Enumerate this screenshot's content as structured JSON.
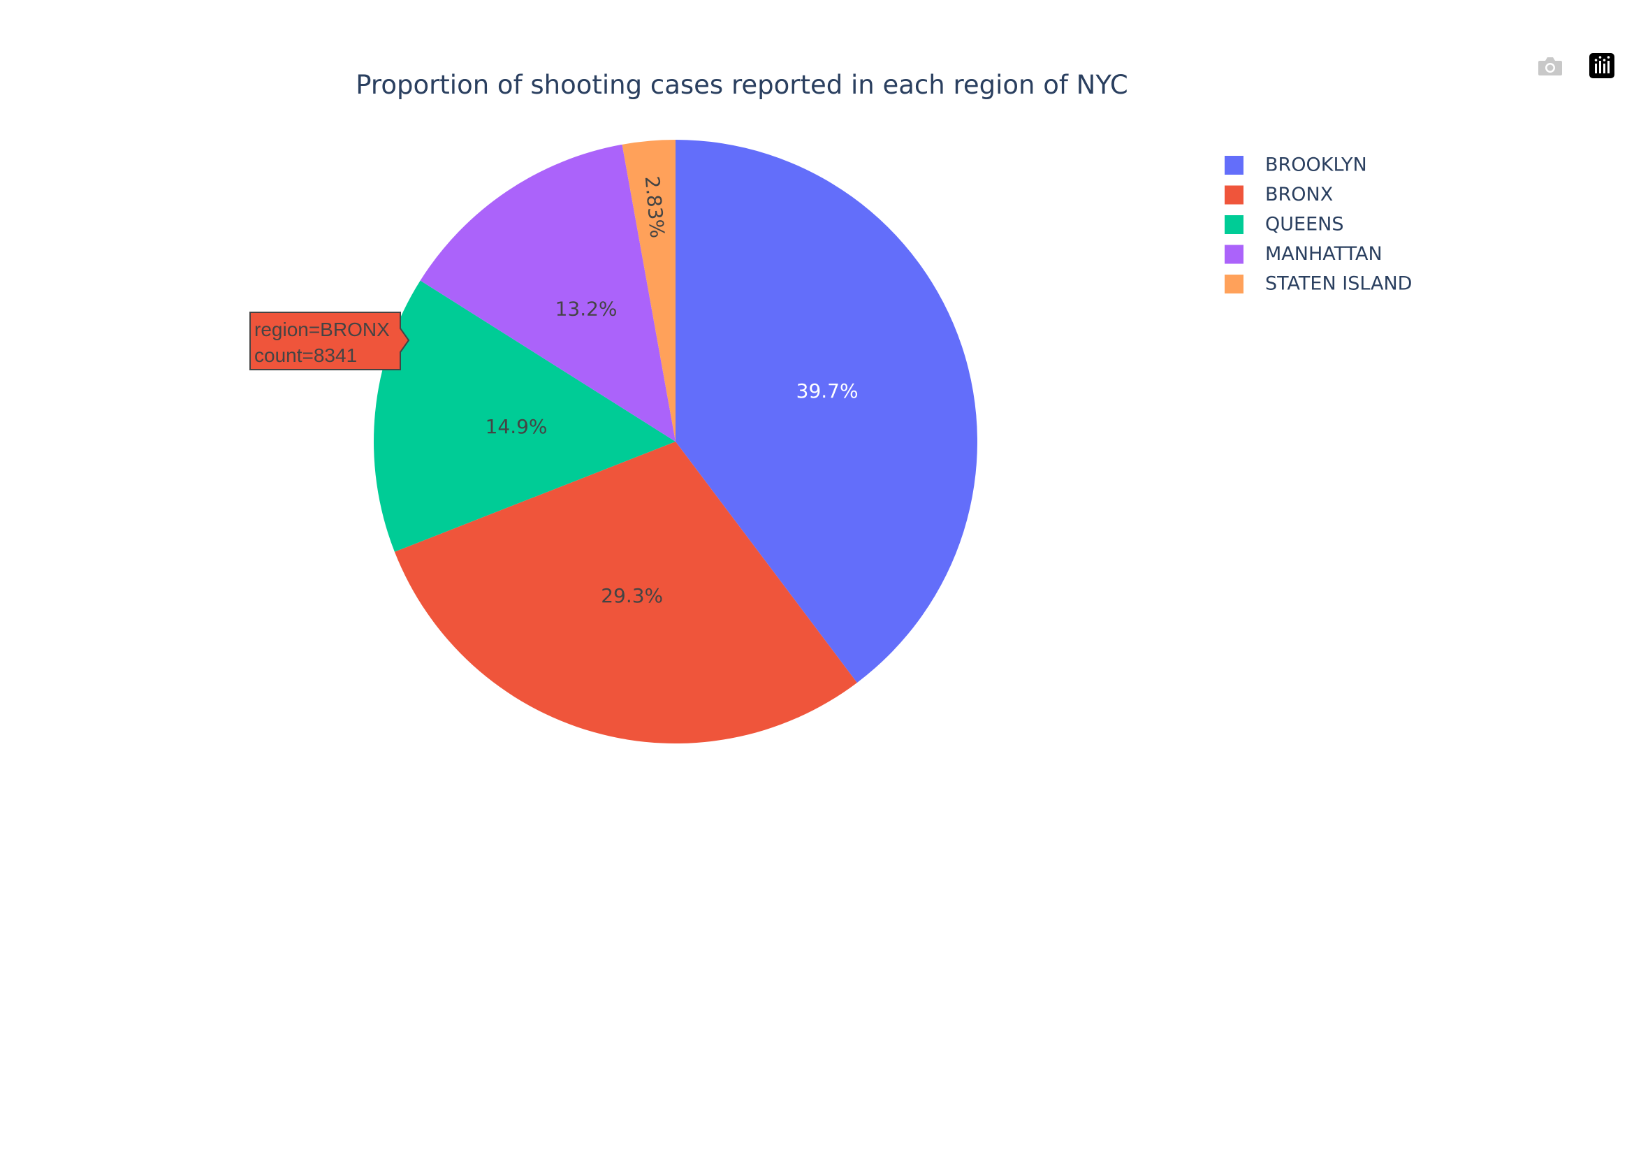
{
  "chart_data": {
    "type": "pie",
    "title": "Proportion of shooting cases reported in each region of NYC",
    "legend_placement": "top-right",
    "slices": [
      {
        "label": "BROOKLYN",
        "percent_label": "39.7%",
        "value": 39.7,
        "color": "#636efa",
        "text_color": "#ffffff"
      },
      {
        "label": "BRONX",
        "percent_label": "29.3%",
        "value": 29.3,
        "color": "#ef553b",
        "text_color": "#444444"
      },
      {
        "label": "QUEENS",
        "percent_label": "14.9%",
        "value": 14.9,
        "color": "#00cc96",
        "text_color": "#444444"
      },
      {
        "label": "MANHATTAN",
        "percent_label": "13.2%",
        "value": 13.2,
        "color": "#ab63fa",
        "text_color": "#444444"
      },
      {
        "label": "STATEN ISLAND",
        "percent_label": "2.83%",
        "value": 2.83,
        "color": "#ffa15a",
        "text_color": "#444444"
      }
    ],
    "hover": {
      "line1": "region=BRONX",
      "line2": "count=8341",
      "color": "#ef553b"
    }
  },
  "modebar": {
    "icons": [
      "camera-icon",
      "plotly-logo-icon"
    ]
  }
}
